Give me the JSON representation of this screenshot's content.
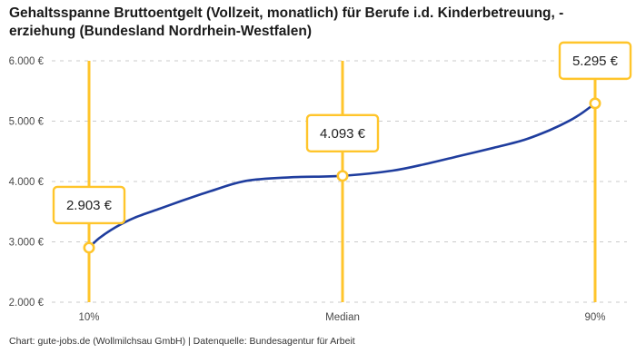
{
  "page": {
    "title_line1": "Gehaltsspanne Bruttoentgelt (Vollzeit, monatlich) für Berufe i.d. Kinderbetreuung, -",
    "title_line2": "erziehung (Bundesland Nordrhein-Westfalen)",
    "footer": "Chart: gute-jobs.de (Wollmilchsau GmbH) | Datenquelle: Bundesagentur für Arbeit"
  },
  "colors": {
    "accent_yellow": "#FFC52B",
    "curve_blue": "#1F3D9E",
    "grid_gray": "#CBCBCB",
    "axis_text": "#494949",
    "box_text": "#222222"
  },
  "chart_data": {
    "type": "line",
    "title": "Gehaltsspanne Bruttoentgelt (Vollzeit, monatlich) für Berufe i.d. Kinderbetreuung, -erziehung (Bundesland Nordrhein-Westfalen)",
    "xlabel": "",
    "ylabel": "",
    "ylim": [
      2000,
      6000
    ],
    "grid": "horizontal-dashed",
    "legend": "none",
    "x_categories": [
      "10%",
      "Median",
      "90%"
    ],
    "points": [
      {
        "label": "10%",
        "value": 2903,
        "value_label": "2.903 €"
      },
      {
        "label": "Median",
        "value": 4093,
        "value_label": "4.093 €"
      },
      {
        "label": "90%",
        "value": 5295,
        "value_label": "5.295 €"
      }
    ],
    "y_ticks": [
      {
        "value": 6000,
        "label": "6.000 €"
      },
      {
        "value": 5000,
        "label": "5.000 €"
      },
      {
        "value": 4000,
        "label": "4.000 €"
      },
      {
        "value": 3000,
        "label": "3.000 €"
      },
      {
        "value": 2000,
        "label": "2.000 €"
      }
    ],
    "curve_samples": [
      [
        0.0,
        2903
      ],
      [
        0.02,
        3060
      ],
      [
        0.05,
        3230
      ],
      [
        0.09,
        3400
      ],
      [
        0.14,
        3550
      ],
      [
        0.18,
        3670
      ],
      [
        0.24,
        3840
      ],
      [
        0.31,
        4010
      ],
      [
        0.4,
        4070
      ],
      [
        0.5,
        4093
      ],
      [
        0.6,
        4180
      ],
      [
        0.67,
        4300
      ],
      [
        0.73,
        4420
      ],
      [
        0.8,
        4560
      ],
      [
        0.86,
        4690
      ],
      [
        0.91,
        4850
      ],
      [
        0.95,
        5010
      ],
      [
        0.975,
        5140
      ],
      [
        1.0,
        5295
      ]
    ]
  }
}
